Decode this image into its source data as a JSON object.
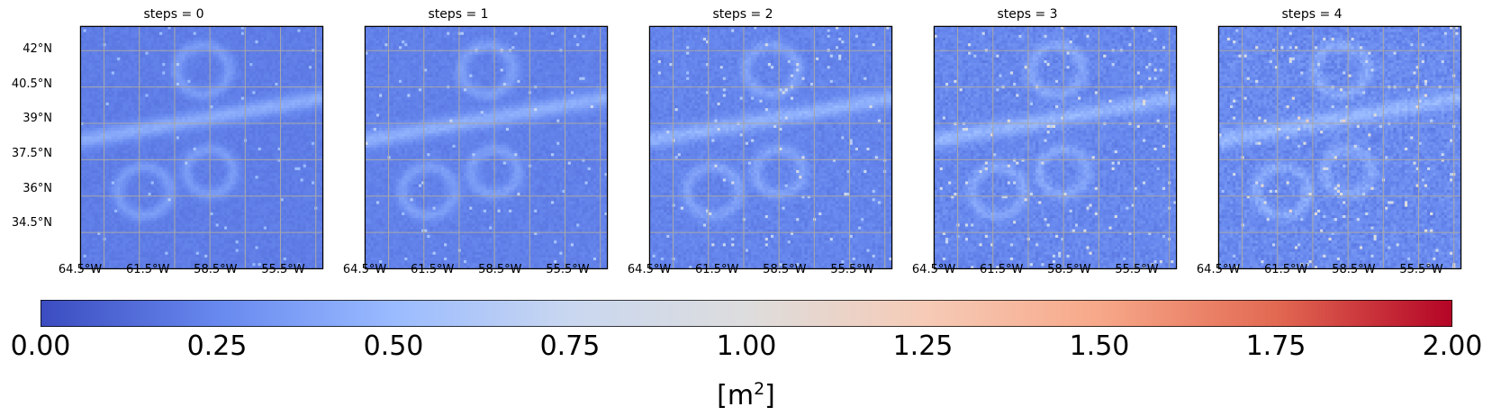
{
  "chart_data": {
    "type": "heatmap",
    "panels": [
      {
        "title": "steps = 0",
        "step": 0
      },
      {
        "title": "steps = 1",
        "step": 1
      },
      {
        "title": "steps = 2",
        "step": 2
      },
      {
        "title": "steps = 3",
        "step": 3
      },
      {
        "title": "steps = 4",
        "step": 4
      }
    ],
    "lat_ticks": [
      "42°N",
      "40.5°N",
      "39°N",
      "37.5°N",
      "36°N",
      "34.5°N"
    ],
    "lon_ticks": [
      "64.5°W",
      "61.5°W",
      "58.5°W",
      "55.5°W"
    ],
    "lat_tick_values": [
      42,
      40.5,
      39,
      37.5,
      36,
      34.5
    ],
    "lon_tick_values": [
      -64.5,
      -61.5,
      -58.5,
      -55.5
    ],
    "lat_range": [
      33,
      43
    ],
    "lon_range": [
      -65.5,
      -55.2
    ],
    "grid": true,
    "colormap": "coolwarm",
    "colormap_stops": [
      "#3b4cc0",
      "#6788ee",
      "#9abbff",
      "#c9d7f0",
      "#dddddd",
      "#f6cbb7",
      "#f7a889",
      "#e26952",
      "#b40426"
    ],
    "colorbar": {
      "ticks": [
        "0.00",
        "0.25",
        "0.50",
        "0.75",
        "1.00",
        "1.25",
        "1.50",
        "1.75",
        "2.00"
      ],
      "tick_values": [
        0,
        0.25,
        0.5,
        0.75,
        1.0,
        1.25,
        1.5,
        1.75,
        2.0
      ],
      "vmin": 0,
      "vmax": 2,
      "unit_base": "[m",
      "unit_sup": "2",
      "unit_end": "]"
    }
  }
}
